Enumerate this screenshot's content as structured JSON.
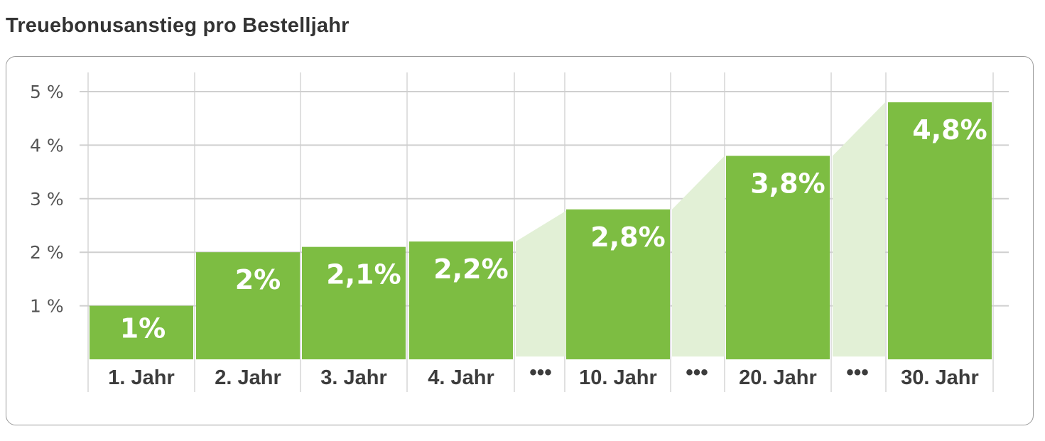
{
  "title": "Treuebonusanstieg pro Bestelljahr",
  "chart_data": {
    "type": "bar",
    "title": "Treuebonusanstieg pro Bestelljahr",
    "y_ticks": [
      "1 %",
      "2 %",
      "3 %",
      "4 %",
      "5 %"
    ],
    "ylim": [
      0,
      5
    ],
    "grid": true,
    "categories": [
      "1. Jahr",
      "2. Jahr",
      "3. Jahr",
      "4. Jahr",
      "10. Jahr",
      "20. Jahr",
      "30. Jahr"
    ],
    "values": [
      1.0,
      2.0,
      2.1,
      2.2,
      2.8,
      3.8,
      4.8
    ],
    "data_labels": [
      "1%",
      "2%",
      "2,1%",
      "2,2%",
      "2,8%",
      "3,8%",
      "4,8%"
    ],
    "gap_marker": "•••",
    "gaps_after": [
      3,
      4,
      5
    ],
    "colors": {
      "bar": "#7dbd42",
      "gap_fill": "#e2f0d6",
      "grid": "#d6d6d6",
      "label": "#ffffff"
    }
  }
}
